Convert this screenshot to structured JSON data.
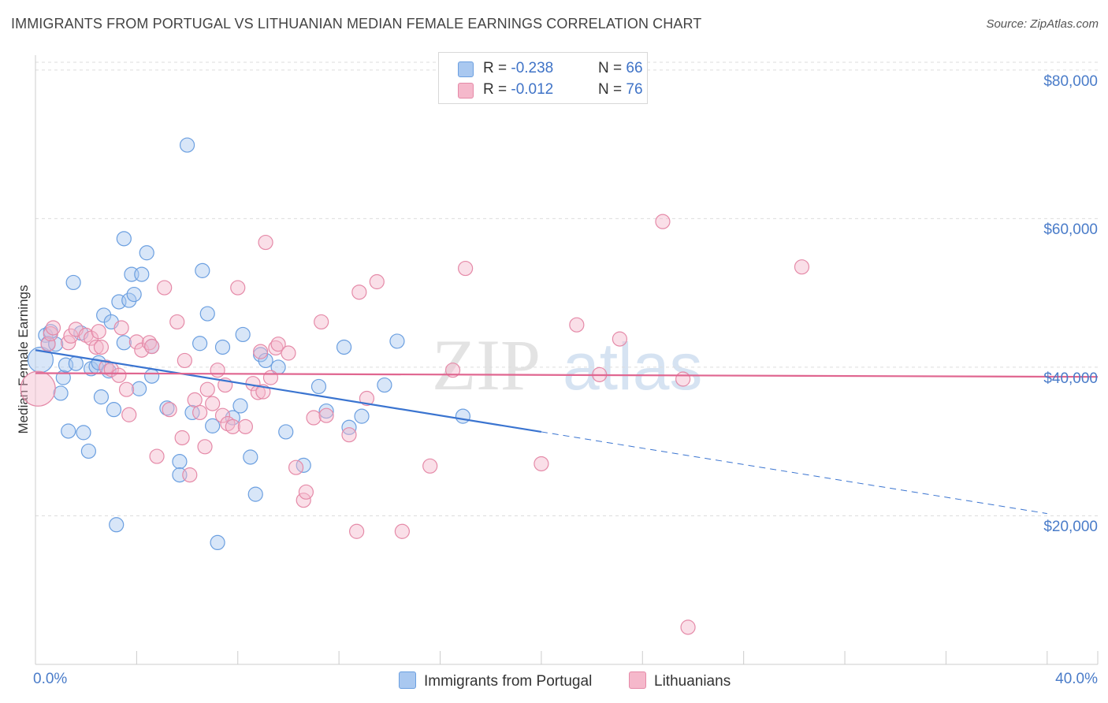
{
  "title": "IMMIGRANTS FROM PORTUGAL VS LITHUANIAN MEDIAN FEMALE EARNINGS CORRELATION CHART",
  "source": "Source: ZipAtlas.com",
  "watermark": {
    "zip": "ZIP",
    "atlas": "atlas"
  },
  "legend": {
    "rows": [
      {
        "r_label": "R = ",
        "r_value": "-0.238",
        "n_label": "N = ",
        "n_value": "66",
        "color": "#a9c8f0"
      },
      {
        "r_label": "R = ",
        "r_value": "-0.012",
        "n_label": "N = ",
        "n_value": "76",
        "color": "#f5b8cb"
      }
    ]
  },
  "bottom_legend": {
    "series1": "Immigrants from Portugal",
    "series2": "Lithuanians"
  },
  "chart_data": {
    "type": "scatter",
    "title": "IMMIGRANTS FROM PORTUGAL VS LITHUANIAN MEDIAN FEMALE EARNINGS CORRELATION CHART",
    "xlabel": "",
    "ylabel": "Median Female Earnings",
    "x_tick_labels": [
      "0.0%",
      "40.0%"
    ],
    "y_tick_labels": [
      "$20,000",
      "$40,000",
      "$60,000",
      "$80,000"
    ],
    "y_ticks": [
      20000,
      40000,
      60000,
      80000
    ],
    "xlim": [
      0,
      42
    ],
    "ylim": [
      0,
      82000
    ],
    "grid": "horizontal dashed",
    "legend_position": "top-center",
    "series": [
      {
        "name": "Immigrants from Portugal",
        "color": "#6b9fe0",
        "fill": "#a9c8f0",
        "trend": {
          "x0": 0,
          "y0": 42300,
          "x1": 20,
          "y1": 31300,
          "dashed_to_x": 40,
          "dashed_to_y": 20300
        },
        "points": [
          [
            0.2,
            41000,
            2
          ],
          [
            0.4,
            44300,
            1
          ],
          [
            0.5,
            43200,
            1
          ],
          [
            0.6,
            44800,
            1
          ],
          [
            0.8,
            43100,
            1
          ],
          [
            1.0,
            36500,
            1
          ],
          [
            1.1,
            38600,
            1
          ],
          [
            1.2,
            40300,
            1
          ],
          [
            1.3,
            31400,
            1
          ],
          [
            1.5,
            51400,
            1
          ],
          [
            1.6,
            40500,
            1
          ],
          [
            1.8,
            44600,
            1
          ],
          [
            1.9,
            31200,
            1
          ],
          [
            2.1,
            28700,
            1
          ],
          [
            2.2,
            39800,
            1
          ],
          [
            2.4,
            40100,
            1
          ],
          [
            2.5,
            40600,
            1
          ],
          [
            2.6,
            36000,
            1
          ],
          [
            2.7,
            47000,
            1
          ],
          [
            2.9,
            39500,
            1
          ],
          [
            3.0,
            46100,
            1
          ],
          [
            3.1,
            34300,
            1
          ],
          [
            3.2,
            18800,
            1
          ],
          [
            3.3,
            48800,
            1
          ],
          [
            3.5,
            57300,
            1
          ],
          [
            3.5,
            43300,
            1
          ],
          [
            3.7,
            49000,
            1
          ],
          [
            3.8,
            52500,
            1
          ],
          [
            3.9,
            49800,
            1
          ],
          [
            4.1,
            37100,
            1
          ],
          [
            4.2,
            52500,
            1
          ],
          [
            4.4,
            55400,
            1
          ],
          [
            4.6,
            42800,
            1
          ],
          [
            4.6,
            38800,
            1
          ],
          [
            5.2,
            34500,
            1
          ],
          [
            5.7,
            27300,
            1
          ],
          [
            5.7,
            25500,
            1
          ],
          [
            6.0,
            69900,
            1
          ],
          [
            6.2,
            33900,
            1
          ],
          [
            6.5,
            43200,
            1
          ],
          [
            6.6,
            53000,
            1
          ],
          [
            6.8,
            47200,
            1
          ],
          [
            7.0,
            32100,
            1
          ],
          [
            7.2,
            16400,
            1
          ],
          [
            7.4,
            42700,
            1
          ],
          [
            7.8,
            33200,
            1
          ],
          [
            8.1,
            34800,
            1
          ],
          [
            8.2,
            44400,
            1
          ],
          [
            8.5,
            27900,
            1
          ],
          [
            8.7,
            22900,
            1
          ],
          [
            8.9,
            41700,
            1
          ],
          [
            9.1,
            40900,
            1
          ],
          [
            9.6,
            40000,
            1
          ],
          [
            9.9,
            31300,
            1
          ],
          [
            10.6,
            26800,
            1
          ],
          [
            11.2,
            37400,
            1
          ],
          [
            11.5,
            34100,
            1
          ],
          [
            12.2,
            42700,
            1
          ],
          [
            12.4,
            31900,
            1
          ],
          [
            12.9,
            33400,
            1
          ],
          [
            13.8,
            37600,
            1
          ],
          [
            14.3,
            43500,
            1
          ],
          [
            16.9,
            33400,
            1
          ]
        ]
      },
      {
        "name": "Lithuanians",
        "color": "#e58aa8",
        "fill": "#f5b8cb",
        "trend": {
          "x0": 0,
          "y0": 39200,
          "x1": 42,
          "y1": 38700
        },
        "points": [
          [
            0.1,
            37100,
            3
          ],
          [
            0.5,
            43100,
            1
          ],
          [
            0.6,
            44500,
            1
          ],
          [
            0.7,
            45300,
            1
          ],
          [
            1.3,
            43300,
            1
          ],
          [
            1.4,
            44200,
            1
          ],
          [
            1.6,
            45100,
            1
          ],
          [
            2.0,
            44300,
            1
          ],
          [
            2.2,
            43900,
            1
          ],
          [
            2.4,
            42700,
            1
          ],
          [
            2.5,
            44800,
            1
          ],
          [
            2.6,
            42700,
            1
          ],
          [
            2.8,
            40000,
            1
          ],
          [
            3.0,
            39700,
            1
          ],
          [
            3.3,
            38900,
            1
          ],
          [
            3.4,
            45300,
            1
          ],
          [
            3.6,
            37000,
            1
          ],
          [
            3.7,
            33600,
            1
          ],
          [
            4.0,
            43400,
            1
          ],
          [
            4.2,
            42300,
            1
          ],
          [
            4.5,
            43300,
            1
          ],
          [
            4.6,
            42800,
            1
          ],
          [
            4.8,
            28000,
            1
          ],
          [
            5.1,
            50700,
            1
          ],
          [
            5.3,
            34300,
            1
          ],
          [
            5.6,
            46100,
            1
          ],
          [
            5.8,
            30500,
            1
          ],
          [
            5.9,
            40900,
            1
          ],
          [
            6.1,
            25500,
            1
          ],
          [
            6.3,
            35600,
            1
          ],
          [
            6.5,
            33900,
            1
          ],
          [
            6.7,
            29300,
            1
          ],
          [
            6.8,
            37000,
            1
          ],
          [
            7.0,
            35100,
            1
          ],
          [
            7.2,
            39600,
            1
          ],
          [
            7.4,
            33500,
            1
          ],
          [
            7.5,
            37600,
            1
          ],
          [
            7.6,
            32400,
            1
          ],
          [
            7.8,
            32000,
            1
          ],
          [
            8.0,
            50700,
            1
          ],
          [
            8.3,
            32000,
            1
          ],
          [
            8.6,
            37800,
            1
          ],
          [
            8.8,
            36600,
            1
          ],
          [
            8.9,
            42100,
            1
          ],
          [
            9.0,
            36700,
            1
          ],
          [
            9.1,
            56800,
            1
          ],
          [
            9.3,
            38600,
            1
          ],
          [
            9.5,
            42600,
            1
          ],
          [
            9.6,
            43100,
            1
          ],
          [
            10.0,
            41900,
            1
          ],
          [
            10.3,
            26500,
            1
          ],
          [
            10.6,
            22100,
            1
          ],
          [
            10.7,
            23200,
            1
          ],
          [
            11.0,
            33200,
            1
          ],
          [
            11.3,
            46100,
            1
          ],
          [
            11.5,
            33500,
            1
          ],
          [
            12.4,
            30900,
            1
          ],
          [
            12.7,
            17900,
            1
          ],
          [
            12.8,
            50100,
            1
          ],
          [
            13.1,
            35800,
            1
          ],
          [
            13.5,
            51500,
            1
          ],
          [
            14.5,
            17900,
            1
          ],
          [
            15.6,
            26700,
            1
          ],
          [
            16.5,
            39600,
            1
          ],
          [
            17.0,
            53300,
            1
          ],
          [
            20.0,
            27000,
            1
          ],
          [
            21.4,
            45700,
            1
          ],
          [
            22.3,
            39000,
            1
          ],
          [
            23.1,
            43800,
            1
          ],
          [
            24.8,
            59600,
            1
          ],
          [
            25.6,
            38400,
            1
          ],
          [
            25.8,
            5000,
            1
          ],
          [
            30.3,
            53500,
            1
          ]
        ]
      }
    ]
  }
}
